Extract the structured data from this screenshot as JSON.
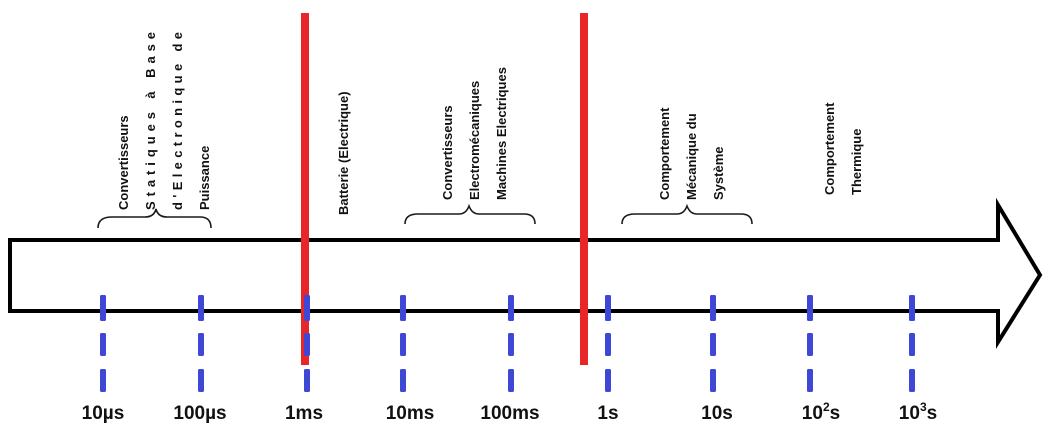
{
  "colors": {
    "arrow_stroke": "#000000",
    "separator": "#e8262a",
    "tick": "#3f47d6",
    "brace": "#1a1a1a"
  },
  "groups": [
    {
      "id": "convertisseurs-statiques",
      "lines": [
        "Convertisseurs",
        "Statiques à Base",
        "d'Electronique de",
        "Puissance"
      ],
      "brace": true
    },
    {
      "id": "batterie",
      "lines": [
        "Batterie (Electrique)"
      ],
      "brace": false
    },
    {
      "id": "convertisseurs-electromecaniques",
      "lines": [
        "Convertisseurs",
        "Electromécaniques",
        "Machines Electriques"
      ],
      "brace": true
    },
    {
      "id": "comportement-mecanique",
      "lines": [
        "Comportement",
        "Mécanique du",
        "Système"
      ],
      "brace": true
    },
    {
      "id": "comportement-thermique",
      "lines": [
        "Comportement",
        "Thermique"
      ],
      "brace": false
    }
  ],
  "ticks": [
    {
      "label": "10µs",
      "sup": ""
    },
    {
      "label": "100µs",
      "sup": ""
    },
    {
      "label": "1ms",
      "sup": ""
    },
    {
      "label": "10ms",
      "sup": ""
    },
    {
      "label": "100ms",
      "sup": ""
    },
    {
      "label": "1s",
      "sup": ""
    },
    {
      "label": "10s",
      "sup": ""
    },
    {
      "label": "10",
      "sup": "2",
      "unit": "s"
    },
    {
      "label": "10",
      "sup": "3",
      "unit": "s"
    }
  ]
}
